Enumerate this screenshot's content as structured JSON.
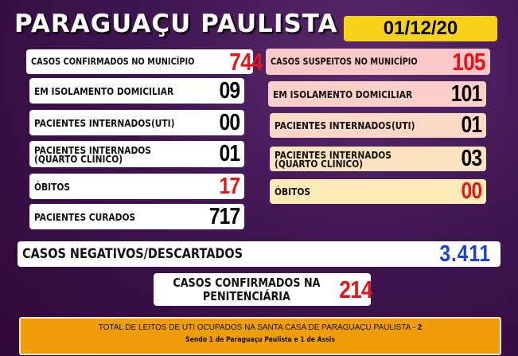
{
  "header": {
    "title": "PARAGUAÇU PAULISTA",
    "date": "01/12/20"
  },
  "confirmed": {
    "items": [
      {
        "label": "CASOS CONFIRMADOS NO MUNICÍPIO",
        "value": "744"
      },
      {
        "label": "EM ISOLAMENTO DOMICILIAR",
        "value": "09"
      },
      {
        "label": "PACIENTES INTERNADOS(UTI)",
        "value": "00"
      },
      {
        "label": "PACIENTES INTERNADOS",
        "label2": "(QUARTO CLÍNICO)",
        "value": "01"
      },
      {
        "label": "ÓBITOS",
        "value": "17"
      },
      {
        "label": "PACIENTES CURADOS",
        "value": "717"
      }
    ]
  },
  "suspected": {
    "items": [
      {
        "label": "CASOS SUSPEITOS NO MUNICÍPIO",
        "value": "105"
      },
      {
        "label": "EM ISOLAMENTO DOMICILIAR",
        "value": "101"
      },
      {
        "label": "PACIENTES INTERNADOS(UTI)",
        "value": "01"
      },
      {
        "label": "PACIENTES INTERNADOS",
        "label2": "(QUARTO CLÍNICO)",
        "value": "03"
      },
      {
        "label": "ÓBITOS",
        "value": "00"
      }
    ]
  },
  "negative": {
    "label": "CASOS NEGATIVOS/DESCARTADOS",
    "value": "3.411"
  },
  "prison": {
    "label": "CASOS CONFIRMADOS NA",
    "label2": "PENITENCIÁRIA",
    "value": "214"
  },
  "footer": {
    "line1": "TOTAL DE LEITOS DE UTI OCUPADOS NA SANTA CASA DE PARAGUAÇU PAULISTA - ",
    "line1_value": "2",
    "line2": "Sendo 1 de Paraguaçu Paulista e 1 de Assis"
  },
  "colors": {
    "background": "#3f1550",
    "date_bg": "#f6d21a",
    "footer_bg": "#f09d0c",
    "red": "#e8141a",
    "blue": "#1a3fe0"
  }
}
